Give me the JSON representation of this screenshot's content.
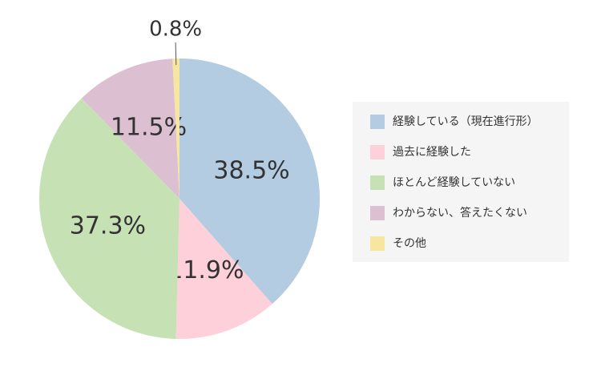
{
  "chart_data": {
    "type": "pie",
    "categories": [
      "経験している（現在進行形）",
      "過去に経験した",
      "ほとんど経験していない",
      "わからない、答えたくない",
      "その他"
    ],
    "values": [
      38.5,
      11.9,
      37.3,
      11.5,
      0.8
    ],
    "value_labels": [
      "38.5%",
      "11.9%",
      "37.3%",
      "11.5%",
      "0.8%"
    ],
    "colors": [
      "#b3cce2",
      "#fdd0da",
      "#c6e2b4",
      "#dcbfd0",
      "#f6e6a0"
    ],
    "legend": "right"
  }
}
